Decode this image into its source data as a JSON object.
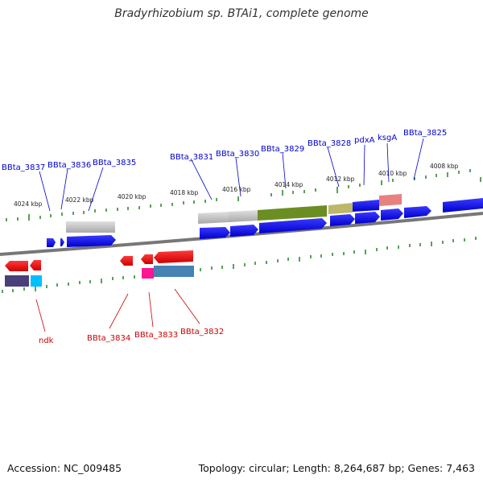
{
  "title": "Bradyrhizobium sp. BTAi1, complete genome",
  "footer": {
    "accession": "Accession: NC_009485",
    "summary": "Topology: circular; Length: 8,264,687 bp; Genes: 7,463"
  },
  "colors": {
    "backbone": "#777777",
    "tick": "#2e8b2e",
    "label_top": "#0000cc",
    "label_bottom": "#cc0000",
    "tick_label": "#222222"
  },
  "kbp_labels": [
    "4024 kbp",
    "4022 kbp",
    "4020 kbp",
    "4018 kbp",
    "4016 kbp",
    "4014 kbp",
    "4012 kbp",
    "4010 kbp",
    "4008 kbp"
  ],
  "top_labels": [
    "BBta_3837",
    "BBta_3836",
    "BBta_3835",
    "BBta_3831",
    "BBta_3830",
    "BBta_3829",
    "BBta_3828",
    "pdxA",
    "ksgA",
    "BBta_3825"
  ],
  "bottom_labels": [
    "ndk",
    "BBta_3834",
    "BBta_3833",
    "BBta_3832"
  ]
}
